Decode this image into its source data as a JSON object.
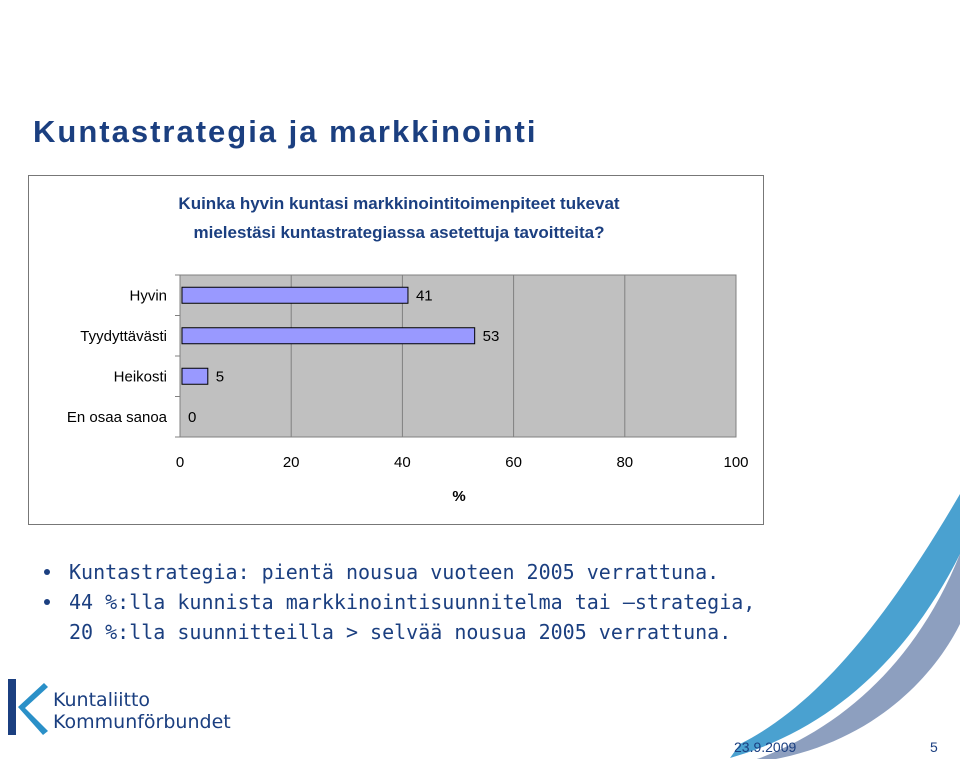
{
  "slide": {
    "title": "Kuntastrategia ja markkinointi",
    "bullets": [
      "Kuntastrategia: pientä nousua vuoteen 2005 verrattuna.",
      "44 %:lla kunnista markkinointisuunnitelma tai –strategia,",
      "20 %:lla suunnitteilla > selvää nousua 2005 verrattuna."
    ]
  },
  "chart_data": {
    "type": "bar",
    "orientation": "horizontal",
    "title_lines": [
      "Kuinka hyvin kuntasi markkinointitoimenpiteet tukevat",
      "mielestäsi kuntastrategiassa asetettuja tavoitteita?"
    ],
    "categories": [
      "Hyvin",
      "Tyydyttävästi",
      "Heikosti",
      "En osaa sanoa"
    ],
    "values": [
      41,
      53,
      5,
      0
    ],
    "xlabel": "%",
    "xlim": [
      0,
      100
    ],
    "x_ticks": [
      0,
      20,
      40,
      60,
      80,
      100
    ],
    "grid": true,
    "legend": "none",
    "colors": {
      "bar": "#9999ff",
      "plot_bg": "#c0c0c0",
      "bar_edge": "#000000",
      "title": "#1b3f80"
    }
  },
  "logo": {
    "line1": "Kuntaliitto",
    "line2": "Kommunförbundet"
  },
  "footer": {
    "date": "23.9.2009",
    "page": "5"
  },
  "colors": {
    "accent": "#1b3f80",
    "light_accent": "#2a90c8"
  }
}
